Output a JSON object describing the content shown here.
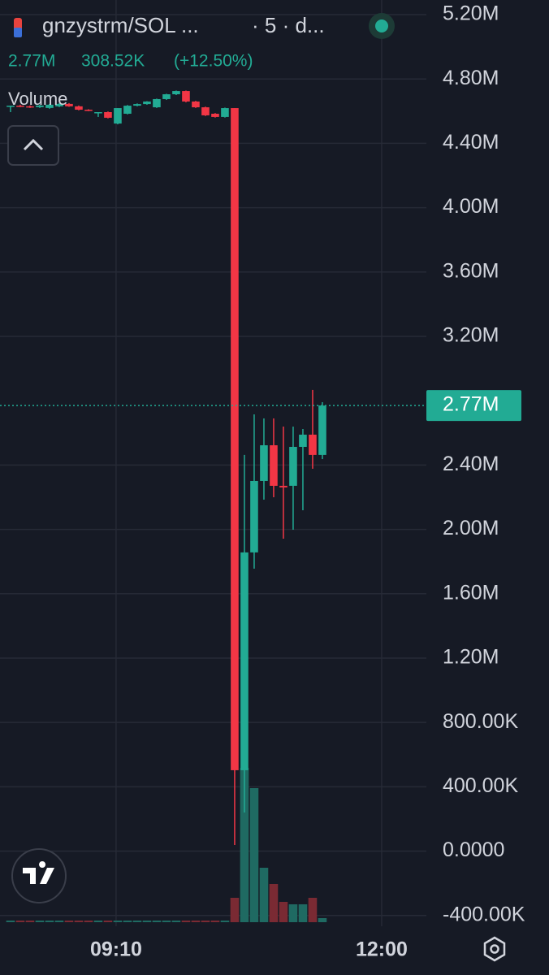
{
  "header": {
    "symbol": "gnzystrm/SOL ...",
    "interval": "· 5 · d...",
    "price": "2.77M",
    "change": "308.52K",
    "change_pct": "(+12.50%)"
  },
  "chart_data": {
    "type": "candlestick",
    "x": [
      0,
      1,
      2,
      3,
      4,
      5,
      6,
      7,
      8,
      9,
      10,
      11,
      12,
      13,
      14,
      15,
      16,
      17,
      18,
      19,
      20,
      21,
      22,
      23,
      24,
      25,
      26,
      27,
      28,
      29,
      30,
      31,
      32
    ],
    "open": [
      4634000,
      4634000,
      4630000,
      4625000,
      4620000,
      4630000,
      4645000,
      4630000,
      4609000,
      4594000,
      4594000,
      4523000,
      4584000,
      4634000,
      4644000,
      4624000,
      4675000,
      4705000,
      4725000,
      4660000,
      4624000,
      4584000,
      4564000,
      4619000,
      503000,
      1857000,
      2301000,
      2523000,
      2271000,
      2271000,
      2513000,
      2589000,
      2463000
    ],
    "high": [
      4634000,
      4640000,
      4635000,
      4640000,
      4645000,
      4650000,
      4650000,
      4635000,
      4612000,
      4594000,
      4598000,
      4619000,
      4638000,
      4648000,
      4662000,
      4678000,
      4708000,
      4728000,
      4728000,
      4664000,
      4628000,
      4588000,
      4622000,
      4619000,
      2463000,
      2715000,
      2690000,
      2690000,
      2639000,
      2639000,
      2624000,
      2867000,
      2791000
    ],
    "low": [
      4594000,
      4625000,
      4620000,
      4620000,
      4615000,
      4625000,
      4627000,
      4605000,
      4600000,
      4564000,
      4555000,
      4518000,
      4580000,
      4630000,
      4640000,
      4620000,
      4670000,
      4700000,
      4655000,
      4620000,
      4570000,
      4560000,
      4560000,
      38000,
      240000,
      1756000,
      2185000,
      2200000,
      1942000,
      1998000,
      2119000,
      2377000,
      2437000
    ],
    "close": [
      4634000,
      4630000,
      4625000,
      4635000,
      4640000,
      4645000,
      4630000,
      4609000,
      4604000,
      4594000,
      4559000,
      4619000,
      4634000,
      4644000,
      4660000,
      4675000,
      4705000,
      4725000,
      4660000,
      4624000,
      4574000,
      4564000,
      4619000,
      503000,
      1857000,
      2301000,
      2523000,
      2271000,
      2261000,
      2513000,
      2589000,
      2463000,
      2770000
    ],
    "up_color": "#22ab94",
    "down_color": "#f23645",
    "volume": {
      "name": "Volume",
      "values": [
        2,
        2,
        2,
        2,
        2,
        2,
        2,
        2,
        2,
        2,
        2,
        2,
        2,
        2,
        2,
        2,
        2,
        2,
        2,
        2,
        2,
        2,
        2,
        30,
        190,
        165,
        67,
        47,
        25,
        22,
        22,
        30,
        5
      ],
      "up_color": "#1f6a62",
      "down_color": "#7a2a33"
    },
    "last_price": {
      "value": 2770000,
      "label": "2.77M"
    },
    "xlim": [
      -1.08,
      42.67
    ],
    "xticks": [
      {
        "value": 10.83,
        "label": "09:10"
      },
      {
        "value": 38.08,
        "label": "12:00"
      }
    ],
    "ylim": [
      -467000,
      5291000
    ],
    "yticks": [
      {
        "value": 5200000,
        "label": "5.20M"
      },
      {
        "value": 4800000,
        "label": "4.80M"
      },
      {
        "value": 4400000,
        "label": "4.40M"
      },
      {
        "value": 4000000,
        "label": "4.00M"
      },
      {
        "value": 3600000,
        "label": "3.60M"
      },
      {
        "value": 3200000,
        "label": "3.20M"
      },
      {
        "value": 2400000,
        "label": "2.40M"
      },
      {
        "value": 2000000,
        "label": "2.00M"
      },
      {
        "value": 1600000,
        "label": "1.60M"
      },
      {
        "value": 1200000,
        "label": "1.20M"
      },
      {
        "value": 800000,
        "label": "800.00K"
      },
      {
        "value": 400000,
        "label": "400.00K"
      },
      {
        "value": 0,
        "label": "0.0000"
      },
      {
        "value": -400000,
        "label": "-400.00K"
      }
    ],
    "grid": true
  }
}
